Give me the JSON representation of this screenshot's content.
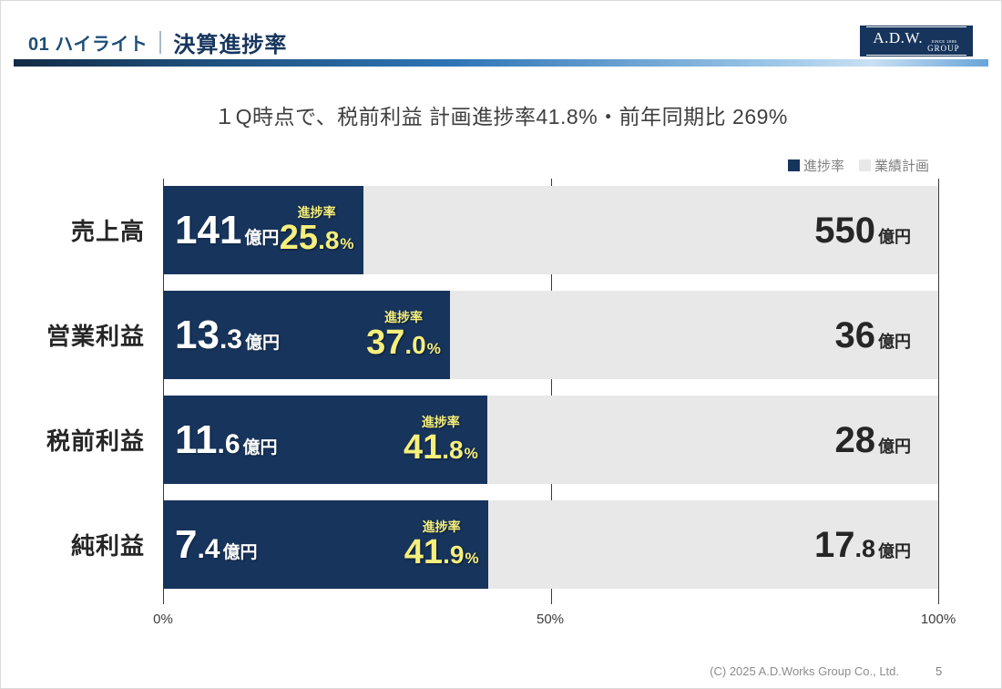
{
  "header": {
    "section_number_label": "01 ハイライト",
    "page_title": "決算進捗率",
    "logo_main": "A.D.W.",
    "logo_since": "SINCE 1886",
    "logo_group": "GROUP"
  },
  "headline": "１Q時点で、税前利益 計画進捗率41.8%・前年同期比 269%",
  "legend": {
    "progress_label": "進捗率",
    "plan_label": "業績計画",
    "progress_color": "#17345c",
    "plan_color": "#e8e8e8"
  },
  "colors": {
    "bar_progress": "#17345c",
    "bar_plan": "#e8e8e8",
    "accent_yellow": "#f5ef7d",
    "header_navy": "#17365d"
  },
  "chart_data": {
    "type": "bar",
    "orientation": "horizontal",
    "title": "決算進捗率",
    "categories": [
      "売上高",
      "営業利益",
      "税前利益",
      "純利益"
    ],
    "series": [
      {
        "name": "進捗率",
        "unit": "%",
        "values": [
          25.8,
          37.0,
          41.8,
          41.9
        ],
        "amounts_oku_yen": [
          141,
          13.3,
          11.6,
          7.4
        ],
        "color": "#17345c"
      },
      {
        "name": "業績計画",
        "unit": "億円",
        "values": [
          100,
          100,
          100,
          100
        ],
        "amounts_oku_yen": [
          550,
          36,
          28,
          17.8
        ],
        "color": "#e8e8e8"
      }
    ],
    "x_axis": {
      "range": [
        0,
        100
      ],
      "ticks": [
        "0%",
        "50%",
        "100%"
      ]
    },
    "legend_position": "top-right",
    "grid": true
  },
  "rows": [
    {
      "label": "売上高",
      "value_int": "141",
      "value_dec": "",
      "value_unit": "億円",
      "progress_caption": "進捗率",
      "pct": 25.8,
      "pct_int": "25",
      "pct_dec": ".8",
      "pct_unit": "%",
      "plan_int": "550",
      "plan_dec": "",
      "plan_unit": "億円"
    },
    {
      "label": "営業利益",
      "value_int": "13",
      "value_dec": ".3",
      "value_unit": "億円",
      "progress_caption": "進捗率",
      "pct": 37.0,
      "pct_int": "37",
      "pct_dec": ".0",
      "pct_unit": "%",
      "plan_int": "36",
      "plan_dec": "",
      "plan_unit": "億円"
    },
    {
      "label": "税前利益",
      "value_int": "11",
      "value_dec": ".6",
      "value_unit": "億円",
      "progress_caption": "進捗率",
      "pct": 41.8,
      "pct_int": "41",
      "pct_dec": ".8",
      "pct_unit": "%",
      "plan_int": "28",
      "plan_dec": "",
      "plan_unit": "億円"
    },
    {
      "label": "純利益",
      "value_int": "7",
      "value_dec": ".4",
      "value_unit": "億円",
      "progress_caption": "進捗率",
      "pct": 41.9,
      "pct_int": "41",
      "pct_dec": ".9",
      "pct_unit": "%",
      "plan_int": "17",
      "plan_dec": ".8",
      "plan_unit": "億円"
    }
  ],
  "axis": {
    "tick_0": "0%",
    "tick_50": "50%",
    "tick_100": "100%"
  },
  "footer": {
    "copyright": "(C) 2025  A.D.Works Group Co., Ltd.",
    "page": "5"
  }
}
